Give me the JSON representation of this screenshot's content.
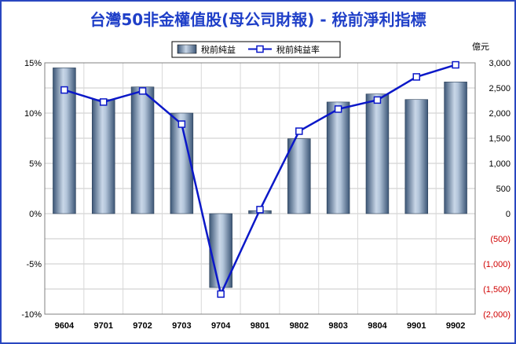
{
  "chart_data": {
    "type": "bar",
    "title": "台灣50非金權值股(母公司財報) - 稅前淨利指標",
    "categories": [
      "9604",
      "9701",
      "9702",
      "9703",
      "9704",
      "9801",
      "9802",
      "9803",
      "9804",
      "9901",
      "9902"
    ],
    "series": [
      {
        "name": "稅前純益",
        "axis": "right",
        "style": "bar",
        "values": [
          2900,
          2270,
          2520,
          2000,
          -1470,
          60,
          1490,
          2220,
          2380,
          2270,
          2620
        ]
      },
      {
        "name": "稅前純益率",
        "axis": "left",
        "style": "line",
        "values": [
          12.3,
          11.1,
          12.2,
          8.9,
          -8.0,
          0.4,
          8.2,
          10.4,
          11.3,
          13.6,
          14.8
        ]
      }
    ],
    "y_left": {
      "min": -10,
      "max": 15,
      "step": 5,
      "ticks": [
        "-10%",
        "-5%",
        "0%",
        "5%",
        "10%",
        "15%"
      ]
    },
    "y_right": {
      "label": "億元",
      "min": -2000,
      "max": 3000,
      "step": 500,
      "ticks": [
        "(2,000)",
        "(1,500)",
        "(1,000)",
        "(500)",
        "0",
        "500",
        "1,000",
        "1,500",
        "2,000",
        "2,500",
        "3,000"
      ]
    },
    "grid": true,
    "legend_position": "top-center",
    "colors": {
      "title": "#1f3fc8",
      "border": "#2a47c0",
      "line": "#0b18c8",
      "bar_dark": "#3c5676",
      "bar_light": "#c9d7e8",
      "negative_tick": "#d00000"
    }
  }
}
